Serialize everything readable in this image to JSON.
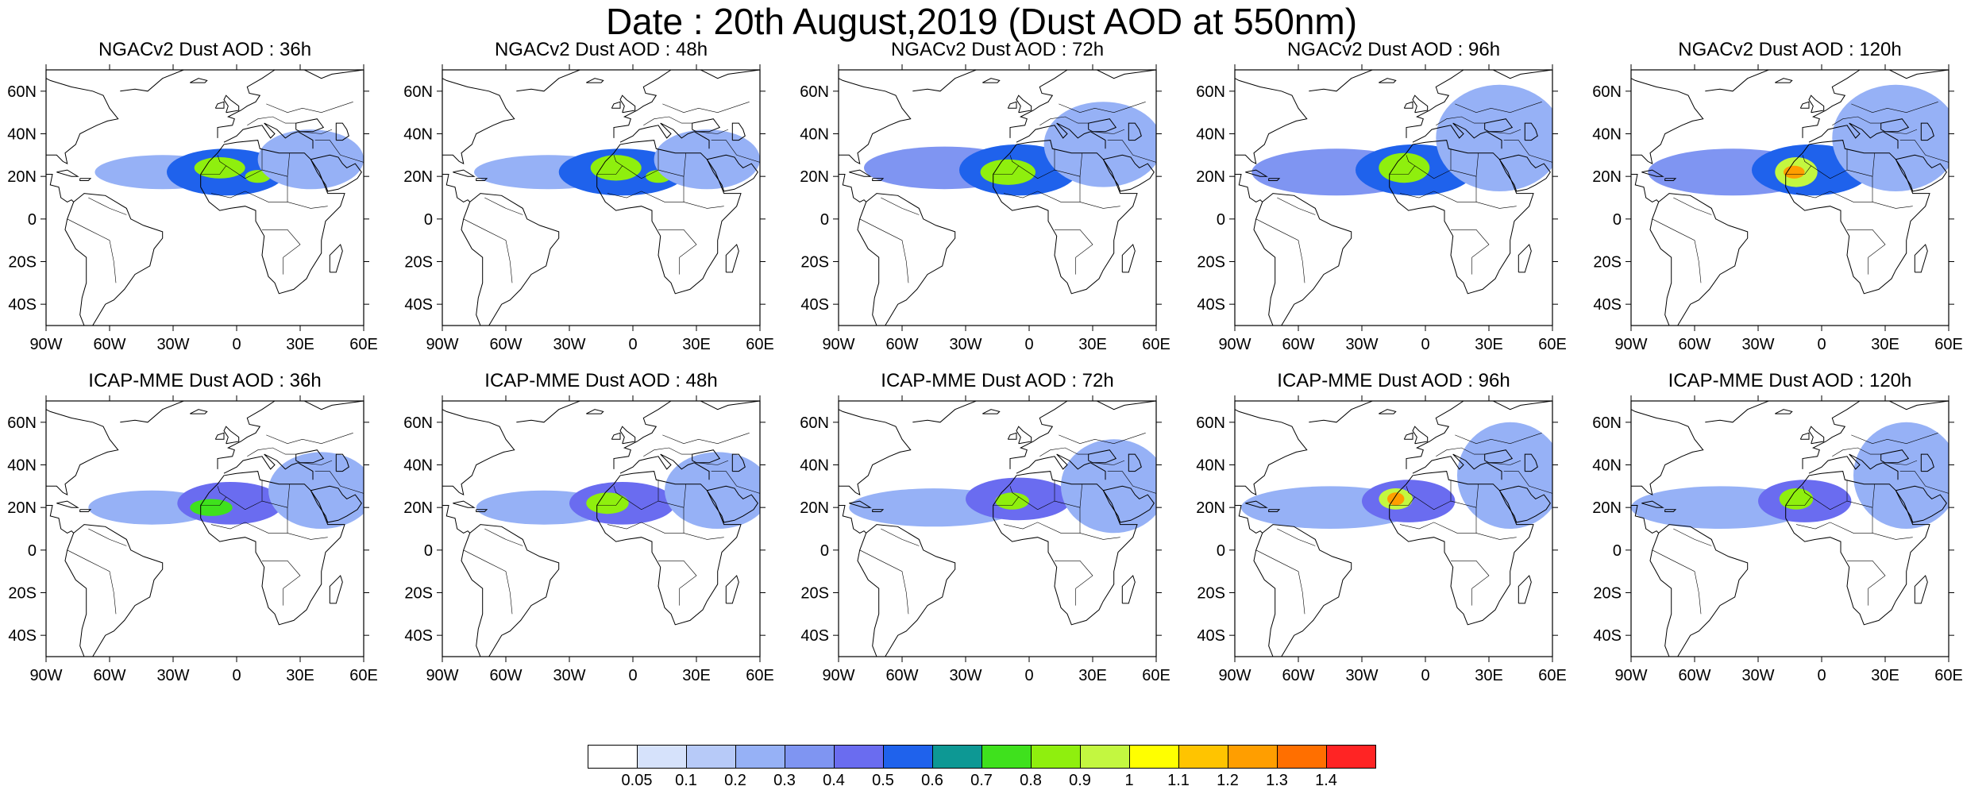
{
  "title": "Date : 20th August,2019 (Dust AOD at 550nm)",
  "panels": [
    {
      "title": "NGACv2 Dust AOD : 36h",
      "model": "NGACv2",
      "lead": "36h"
    },
    {
      "title": "NGACv2 Dust AOD : 48h",
      "model": "NGACv2",
      "lead": "48h"
    },
    {
      "title": "NGACv2 Dust AOD : 72h",
      "model": "NGACv2",
      "lead": "72h"
    },
    {
      "title": "NGACv2 Dust AOD : 96h",
      "model": "NGACv2",
      "lead": "96h"
    },
    {
      "title": "NGACv2 Dust AOD : 120h",
      "model": "NGACv2",
      "lead": "120h"
    },
    {
      "title": "ICAP-MME Dust AOD : 36h",
      "model": "ICAP-MME",
      "lead": "36h"
    },
    {
      "title": "ICAP-MME Dust AOD : 48h",
      "model": "ICAP-MME",
      "lead": "48h"
    },
    {
      "title": "ICAP-MME Dust AOD : 72h",
      "model": "ICAP-MME",
      "lead": "72h"
    },
    {
      "title": "ICAP-MME Dust AOD : 96h",
      "model": "ICAP-MME",
      "lead": "96h"
    },
    {
      "title": "ICAP-MME Dust AOD : 120h",
      "model": "ICAP-MME",
      "lead": "120h"
    }
  ],
  "map": {
    "lon_range": [
      -90,
      60
    ],
    "lat_range": [
      -50,
      70
    ],
    "lon_ticks": [
      -90,
      -60,
      -30,
      0,
      30,
      60
    ],
    "lon_tick_labels": [
      "90W",
      "60W",
      "30W",
      "0",
      "30E",
      "60E"
    ],
    "lat_ticks": [
      60,
      40,
      20,
      0,
      -20,
      -40
    ],
    "lat_tick_labels": [
      "60N",
      "40N",
      "20N",
      "0",
      "20S",
      "40S"
    ]
  },
  "legend": {
    "colors": [
      "#ffffff",
      "#d6e2fb",
      "#b7caf8",
      "#96b1f6",
      "#7f95f2",
      "#6a6cf0",
      "#1f62ec",
      "#0d9894",
      "#3fe11d",
      "#8fef0e",
      "#c3f740",
      "#ffff00",
      "#ffc400",
      "#ff9e00",
      "#ff6f00",
      "#ff2424"
    ],
    "labels": [
      "0.05",
      "0.1",
      "0.2",
      "0.3",
      "0.4",
      "0.5",
      "0.6",
      "0.7",
      "0.8",
      "0.9",
      "1",
      "1.1",
      "1.2",
      "1.3",
      "1.4"
    ]
  },
  "chart_data": {
    "type": "heatmap",
    "variable": "Dust AOD at 550nm",
    "lead_times": [
      "36h",
      "48h",
      "72h",
      "96h",
      "120h"
    ],
    "models": [
      "NGACv2",
      "ICAP-MME"
    ],
    "note_fields": [
      {
        "model": "NGACv2",
        "lead": "36h",
        "plume": [
          {
            "lon": -35,
            "lat": 22,
            "rlon": 32,
            "rlat": 8,
            "aod": 0.25
          },
          {
            "lon": -5,
            "lat": 22,
            "rlon": 28,
            "rlat": 11,
            "aod": 0.5
          },
          {
            "lon": -8,
            "lat": 24,
            "rlon": 12,
            "rlat": 5,
            "aod": 0.8
          },
          {
            "lon": 10,
            "lat": 20,
            "rlon": 6,
            "rlat": 3,
            "aod": 0.8
          },
          {
            "lon": 35,
            "lat": 28,
            "rlon": 25,
            "rlat": 14,
            "aod": 0.2
          }
        ]
      },
      {
        "model": "NGACv2",
        "lead": "48h",
        "plume": [
          {
            "lon": -40,
            "lat": 22,
            "rlon": 35,
            "rlat": 8,
            "aod": 0.25
          },
          {
            "lon": -5,
            "lat": 22,
            "rlon": 30,
            "rlat": 11,
            "aod": 0.5
          },
          {
            "lon": -8,
            "lat": 24,
            "rlon": 12,
            "rlat": 6,
            "aod": 0.8
          },
          {
            "lon": 12,
            "lat": 20,
            "rlon": 6,
            "rlat": 3,
            "aod": 0.8
          },
          {
            "lon": 35,
            "lat": 28,
            "rlon": 25,
            "rlat": 14,
            "aod": 0.2
          }
        ]
      },
      {
        "model": "NGACv2",
        "lead": "72h",
        "plume": [
          {
            "lon": -40,
            "lat": 24,
            "rlon": 38,
            "rlat": 10,
            "aod": 0.3
          },
          {
            "lon": -5,
            "lat": 23,
            "rlon": 28,
            "rlat": 12,
            "aod": 0.5
          },
          {
            "lon": -10,
            "lat": 22,
            "rlon": 13,
            "rlat": 6,
            "aod": 0.8
          },
          {
            "lon": 35,
            "lat": 35,
            "rlon": 28,
            "rlat": 20,
            "aod": 0.2
          }
        ]
      },
      {
        "model": "NGACv2",
        "lead": "96h",
        "plume": [
          {
            "lon": -42,
            "lat": 22,
            "rlon": 40,
            "rlat": 11,
            "aod": 0.3
          },
          {
            "lon": -5,
            "lat": 23,
            "rlon": 28,
            "rlat": 12,
            "aod": 0.5
          },
          {
            "lon": -10,
            "lat": 24,
            "rlon": 12,
            "rlat": 7,
            "aod": 0.8
          },
          {
            "lon": 35,
            "lat": 38,
            "rlon": 30,
            "rlat": 25,
            "aod": 0.2
          }
        ]
      },
      {
        "model": "NGACv2",
        "lead": "120h",
        "plume": [
          {
            "lon": -42,
            "lat": 22,
            "rlon": 40,
            "rlat": 11,
            "aod": 0.3
          },
          {
            "lon": -5,
            "lat": 23,
            "rlon": 28,
            "rlat": 12,
            "aod": 0.5
          },
          {
            "lon": -12,
            "lat": 22,
            "rlon": 10,
            "rlat": 7,
            "aod": 0.9
          },
          {
            "lon": -13,
            "lat": 22,
            "rlon": 5,
            "rlat": 3,
            "aod": 1.2
          },
          {
            "lon": 35,
            "lat": 38,
            "rlon": 30,
            "rlat": 25,
            "aod": 0.2
          }
        ]
      },
      {
        "model": "ICAP-MME",
        "lead": "36h",
        "plume": [
          {
            "lon": -40,
            "lat": 20,
            "rlon": 30,
            "rlat": 8,
            "aod": 0.25
          },
          {
            "lon": -3,
            "lat": 22,
            "rlon": 25,
            "rlat": 10,
            "aod": 0.45
          },
          {
            "lon": -12,
            "lat": 20,
            "rlon": 10,
            "rlat": 4,
            "aod": 0.75
          },
          {
            "lon": 40,
            "lat": 28,
            "rlon": 25,
            "rlat": 18,
            "aod": 0.2
          }
        ]
      },
      {
        "model": "ICAP-MME",
        "lead": "48h",
        "plume": [
          {
            "lon": -42,
            "lat": 20,
            "rlon": 32,
            "rlat": 8,
            "aod": 0.25
          },
          {
            "lon": -5,
            "lat": 22,
            "rlon": 25,
            "rlat": 10,
            "aod": 0.45
          },
          {
            "lon": -12,
            "lat": 22,
            "rlon": 10,
            "rlat": 5,
            "aod": 0.8
          },
          {
            "lon": 40,
            "lat": 28,
            "rlon": 25,
            "rlat": 18,
            "aod": 0.2
          }
        ]
      },
      {
        "model": "ICAP-MME",
        "lead": "72h",
        "plume": [
          {
            "lon": -45,
            "lat": 20,
            "rlon": 40,
            "rlat": 9,
            "aod": 0.25
          },
          {
            "lon": -5,
            "lat": 24,
            "rlon": 25,
            "rlat": 10,
            "aod": 0.45
          },
          {
            "lon": -8,
            "lat": 23,
            "rlon": 8,
            "rlat": 4,
            "aod": 0.85
          },
          {
            "lon": 40,
            "lat": 30,
            "rlon": 25,
            "rlat": 22,
            "aod": 0.2
          }
        ]
      },
      {
        "model": "ICAP-MME",
        "lead": "96h",
        "plume": [
          {
            "lon": -45,
            "lat": 20,
            "rlon": 42,
            "rlat": 10,
            "aod": 0.25
          },
          {
            "lon": -8,
            "lat": 23,
            "rlon": 22,
            "rlat": 10,
            "aod": 0.45
          },
          {
            "lon": -14,
            "lat": 24,
            "rlon": 8,
            "rlat": 5,
            "aod": 0.9
          },
          {
            "lon": -14,
            "lat": 24,
            "rlon": 4,
            "rlat": 3,
            "aod": 1.2
          },
          {
            "lon": 40,
            "lat": 35,
            "rlon": 25,
            "rlat": 25,
            "aod": 0.2
          }
        ]
      },
      {
        "model": "ICAP-MME",
        "lead": "120h",
        "plume": [
          {
            "lon": -48,
            "lat": 20,
            "rlon": 42,
            "rlat": 10,
            "aod": 0.25
          },
          {
            "lon": -8,
            "lat": 23,
            "rlon": 22,
            "rlat": 10,
            "aod": 0.45
          },
          {
            "lon": -12,
            "lat": 24,
            "rlon": 8,
            "rlat": 5,
            "aod": 0.85
          },
          {
            "lon": 40,
            "lat": 35,
            "rlon": 25,
            "rlat": 25,
            "aod": 0.2
          }
        ]
      }
    ]
  }
}
